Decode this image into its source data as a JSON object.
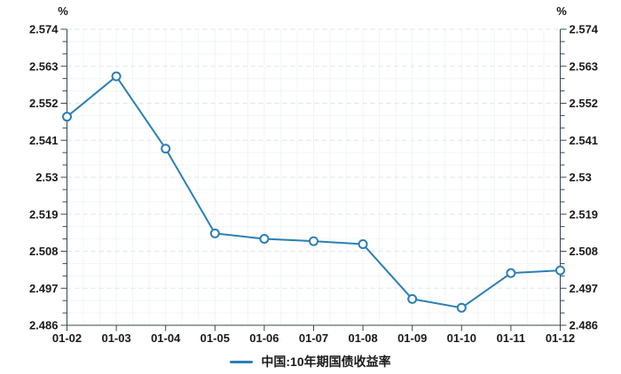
{
  "chart": {
    "unit_left": "%",
    "unit_right": "%",
    "legend": {
      "label": "中国:10年期国债收益率"
    },
    "colors": {
      "line": "#2b7fb4",
      "marker_fill": "#ffffff",
      "axis": "#37474f",
      "text": "#1a1a1a",
      "grid_major": "#dde6e6",
      "grid_minor": "#f1f5f5"
    }
  },
  "chart_data": {
    "type": "line",
    "title": "",
    "categories": [
      "01-02",
      "01-03",
      "01-04",
      "01-05",
      "01-06",
      "01-07",
      "01-08",
      "01-09",
      "01-10",
      "01-11",
      "01-12"
    ],
    "series": [
      {
        "name": "中国:10年期国债收益率",
        "values": [
          2.548,
          2.56,
          2.5385,
          2.5133,
          2.5117,
          2.511,
          2.5101,
          2.4938,
          2.4912,
          2.5015,
          2.5023
        ]
      }
    ],
    "xlabel": "",
    "ylabel": "%",
    "ylim": [
      2.486,
      2.574
    ],
    "y_ticks": [
      "2.574",
      "2.563",
      "2.552",
      "2.541",
      "2.53",
      "2.519",
      "2.508",
      "2.497",
      "2.486"
    ],
    "minor_ticks_between_majors": 2,
    "dual_y_axis": true,
    "grid": "horizontal-dashed-major, faint-minor-grid",
    "marker": "open-circle",
    "legend_position": "bottom-center"
  }
}
